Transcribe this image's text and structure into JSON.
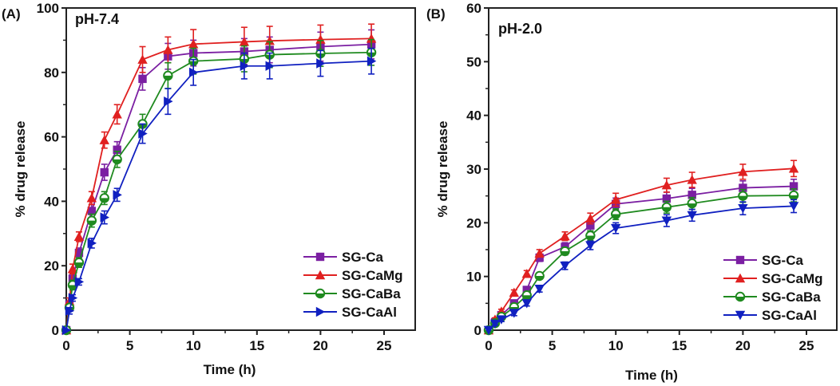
{
  "figure": {
    "panels": [
      "(A)",
      "(B)"
    ]
  },
  "chart_data": [
    {
      "type": "line",
      "panel_label": "(A)",
      "title": "pH-7.4",
      "xlabel": "Time (h)",
      "ylabel": "% drug release",
      "xlim": [
        0,
        27.5
      ],
      "ylim": [
        0,
        100
      ],
      "xticks": [
        0,
        5,
        10,
        15,
        20,
        25
      ],
      "xtick_labels": [
        "0",
        "5",
        "10",
        "15",
        "20",
        "25"
      ],
      "yticks": [
        0,
        20,
        40,
        60,
        80,
        100
      ],
      "ytick_labels": [
        "0",
        "20",
        "40",
        "60",
        "80",
        "100"
      ],
      "grid": false,
      "legend_position": "bottom-right",
      "x": [
        0,
        0.25,
        0.5,
        1,
        2,
        3,
        4,
        6,
        8,
        10,
        14,
        16,
        20,
        24
      ],
      "series": [
        {
          "name": "SG-Ca",
          "color": "#7b1fa2",
          "marker": "square",
          "values": [
            0,
            8,
            16,
            24,
            37,
            49,
            56,
            78,
            85,
            86,
            86.5,
            87,
            88,
            88.7
          ],
          "errors": [
            0,
            1,
            1.5,
            1.5,
            2,
            2.5,
            2.5,
            3.5,
            4,
            4,
            4,
            4,
            4.5,
            4.5
          ]
        },
        {
          "name": "SG-CaMg",
          "color": "#e02020",
          "marker": "triangle-up",
          "values": [
            0,
            9,
            19,
            29,
            41,
            59,
            67,
            84,
            87,
            88.8,
            89.5,
            89.8,
            90.2,
            90.5
          ],
          "errors": [
            0,
            1,
            1.5,
            1.5,
            2,
            2.5,
            3,
            4,
            4,
            4.5,
            4.5,
            4.5,
            4.5,
            4.5
          ]
        },
        {
          "name": "SG-CaBa",
          "color": "#1f8a1f",
          "marker": "circle",
          "values": [
            0,
            7,
            14,
            21,
            34,
            41,
            53,
            64,
            79,
            83.5,
            84.2,
            85.5,
            85.9,
            86.2
          ],
          "errors": [
            0,
            1,
            1.5,
            1.5,
            2,
            2,
            2.5,
            3,
            4,
            4,
            4,
            4,
            4,
            4
          ]
        },
        {
          "name": "SG-CaAl",
          "color": "#1020c0",
          "marker": "triangle-right",
          "values": [
            0,
            6,
            10,
            15,
            27,
            35,
            42,
            61,
            71,
            80,
            82,
            82,
            82.8,
            83.5
          ],
          "errors": [
            0,
            1,
            1,
            1,
            1.5,
            2,
            2,
            3,
            4,
            4,
            4,
            4,
            4,
            4
          ]
        }
      ]
    },
    {
      "type": "line",
      "panel_label": "(B)",
      "title": "pH-2.0",
      "xlabel": "Time (h)",
      "ylabel": "% drug release",
      "xlim": [
        0,
        27.5
      ],
      "ylim": [
        0,
        60
      ],
      "xticks": [
        0,
        5,
        10,
        15,
        20,
        25
      ],
      "xtick_labels": [
        "0",
        "5",
        "10",
        "15",
        "20",
        "25"
      ],
      "yticks": [
        0,
        10,
        20,
        30,
        40,
        50,
        60
      ],
      "ytick_labels": [
        "0",
        "10",
        "20",
        "30",
        "40",
        "50",
        "60"
      ],
      "grid": false,
      "legend_position": "bottom-right",
      "x": [
        0,
        0.5,
        1,
        2,
        3,
        4,
        6,
        8,
        10,
        14,
        16,
        20,
        24
      ],
      "series": [
        {
          "name": "SG-Ca",
          "color": "#7b1fa2",
          "marker": "square",
          "values": [
            0,
            1.5,
            2.8,
            5,
            7.5,
            13.5,
            15.5,
            19.5,
            23.5,
            24.5,
            25.2,
            26.5,
            26.8
          ],
          "errors": [
            0,
            0.3,
            0.4,
            0.5,
            0.6,
            0.7,
            0.8,
            1,
            1.1,
            1.2,
            1.2,
            1.3,
            1.3
          ]
        },
        {
          "name": "SG-CaMg",
          "color": "#e02020",
          "marker": "triangle-up",
          "values": [
            0,
            2,
            3.5,
            7,
            10.5,
            14.3,
            17.5,
            20.8,
            24.3,
            27,
            28,
            29.5,
            30.1
          ],
          "errors": [
            0,
            0.3,
            0.4,
            0.5,
            0.6,
            0.7,
            0.8,
            1,
            1.2,
            1.3,
            1.4,
            1.4,
            1.5
          ]
        },
        {
          "name": "SG-CaBa",
          "color": "#1f8a1f",
          "marker": "circle",
          "values": [
            0,
            1.3,
            2.5,
            4.3,
            6.5,
            10.1,
            14.7,
            17.6,
            21.6,
            22.9,
            23.6,
            25,
            25.1
          ],
          "errors": [
            0,
            0.3,
            0.4,
            0.5,
            0.5,
            0.6,
            0.7,
            0.9,
            1,
            1.1,
            1.1,
            1.2,
            1.2
          ]
        },
        {
          "name": "SG-CaAl",
          "color": "#1020c0",
          "marker": "triangle-down",
          "values": [
            0,
            1.2,
            2,
            3.2,
            5,
            7.7,
            12,
            15.8,
            19,
            20.4,
            21.4,
            22.7,
            23.1
          ],
          "errors": [
            0,
            0.3,
            0.4,
            0.5,
            0.5,
            0.6,
            0.7,
            0.8,
            1,
            1.1,
            1.1,
            1.2,
            1.2
          ]
        }
      ]
    }
  ]
}
